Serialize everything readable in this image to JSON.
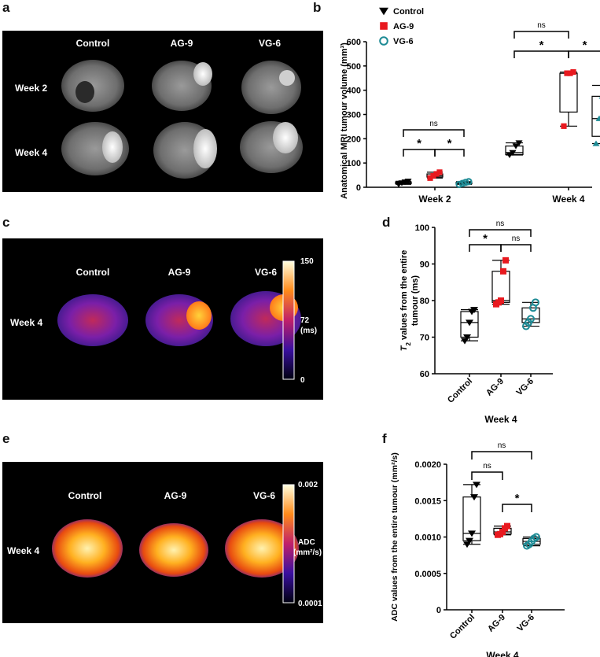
{
  "panel_labels": {
    "a": "a",
    "b": "b",
    "c": "c",
    "d": "d",
    "e": "e",
    "f": "f"
  },
  "colors": {
    "control": "#000000",
    "ag9": "#e8191f",
    "vg6": "#1e8b95"
  },
  "panel_a": {
    "columns": [
      "Control",
      "AG-9",
      "VG-6"
    ],
    "rows": [
      "Week 2",
      "Week 4"
    ]
  },
  "panel_c": {
    "columns": [
      "Control",
      "AG-9",
      "VG-6"
    ],
    "row": "Week 4",
    "colorbar": {
      "max": "150",
      "mid": "72",
      "unit": "(ms)",
      "min": "0"
    }
  },
  "panel_e": {
    "columns": [
      "Control",
      "AG-9",
      "VG-6"
    ],
    "row": "Week 4",
    "colorbar": {
      "max": "0.002",
      "label": "ADC",
      "unit": "(mm²/s)",
      "min": "0.0001"
    }
  },
  "chart_data": [
    {
      "id": "b",
      "type": "box",
      "ylabel": "Anatomical MRI tumour volume (mm³)",
      "ylim": [
        0,
        600
      ],
      "yticks": [
        "0",
        "100",
        "200",
        "300",
        "400",
        "500",
        "600"
      ],
      "categories": [
        "Week 2",
        "Week 4"
      ],
      "legend": [
        "Control",
        "AG-9",
        "VG-6"
      ],
      "series": [
        {
          "name": "Control",
          "week2": {
            "min": 12,
            "q1": 15,
            "median": 18,
            "q3": 22,
            "max": 25
          },
          "week4": {
            "min": 133,
            "q1": 135,
            "median": 143,
            "q3": 170,
            "max": 183
          }
        },
        {
          "name": "AG-9",
          "week2": {
            "min": 38,
            "q1": 42,
            "median": 47,
            "q3": 55,
            "max": 62
          },
          "week4": {
            "min": 252,
            "q1": 310,
            "median": 470,
            "q3": 470,
            "max": 475
          }
        },
        {
          "name": "VG-6",
          "week2": {
            "min": 12,
            "q1": 14,
            "median": 16,
            "q3": 20,
            "max": 23
          },
          "week4": {
            "min": 180,
            "q1": 210,
            "median": 283,
            "q3": 375,
            "max": 420
          }
        }
      ],
      "annotations": [
        "ns",
        "*",
        "*",
        "ns",
        "*",
        "*"
      ]
    },
    {
      "id": "d",
      "type": "box",
      "ylabel_main": "values from the entire",
      "ylabel_sym": "T",
      "ylabel_sub": "2",
      "ylabel_line2": "tumour (ms)",
      "ylim": [
        60,
        100
      ],
      "yticks": [
        "60",
        "70",
        "80",
        "90",
        "100"
      ],
      "categories": [
        "Control",
        "AG-9",
        "VG-6"
      ],
      "xlabel": "Week 4",
      "series": [
        {
          "name": "Control",
          "min": 69,
          "q1": 70,
          "median": 74,
          "q3": 77,
          "max": 77.5
        },
        {
          "name": "AG-9",
          "min": 79,
          "q1": 79.5,
          "median": 80,
          "q3": 88,
          "max": 91
        },
        {
          "name": "VG-6",
          "min": 73,
          "q1": 74,
          "median": 75,
          "q3": 78,
          "max": 79.5
        }
      ],
      "annotations": [
        "ns",
        "*",
        "ns"
      ]
    },
    {
      "id": "f",
      "type": "box",
      "ylabel": "ADC values from the entire tumour (mm²/s)",
      "ylim": [
        0,
        0.002
      ],
      "yticks": [
        "0",
        "0.0005",
        "0.0010",
        "0.0015",
        "0.0020"
      ],
      "categories": [
        "Control",
        "AG-9",
        "VG-6"
      ],
      "xlabel": "Week 4",
      "series": [
        {
          "name": "Control",
          "min": 0.0009,
          "q1": 0.00095,
          "median": 0.00105,
          "q3": 0.00155,
          "max": 0.00172
        },
        {
          "name": "AG-9",
          "min": 0.00103,
          "q1": 0.00104,
          "median": 0.00107,
          "q3": 0.00112,
          "max": 0.00115
        },
        {
          "name": "VG-6",
          "min": 0.00088,
          "q1": 0.0009,
          "median": 0.00094,
          "q3": 0.00098,
          "max": 0.001
        }
      ],
      "annotations": [
        "ns",
        "ns",
        "*"
      ]
    }
  ]
}
